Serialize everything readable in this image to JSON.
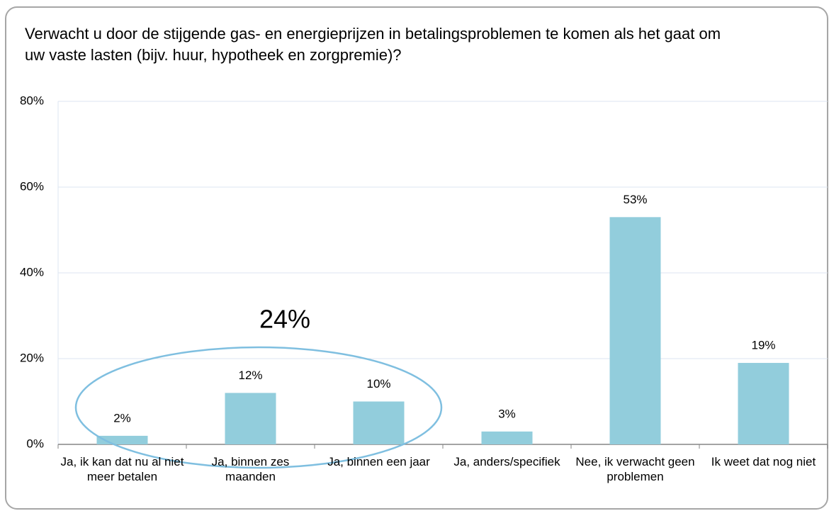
{
  "chart_data": {
    "type": "bar",
    "title": "Verwacht u door de stijgende gas- en energieprijzen in betalingsproblemen te komen als het gaat om uw vaste lasten (bijv. huur, hypotheek en zorgpremie)?",
    "categories": [
      "Ja, ik kan dat nu al niet meer betalen",
      "Ja, binnen zes maanden",
      "Ja, binnen een jaar",
      "Ja, anders/specifiek",
      "Nee, ik verwacht geen problemen",
      "Ik weet dat nog niet"
    ],
    "values": [
      2,
      12,
      10,
      3,
      53,
      19
    ],
    "value_labels": [
      "2%",
      "12%",
      "10%",
      "3%",
      "53%",
      "19%"
    ],
    "color": "#92cddc",
    "ylim": [
      0,
      80
    ],
    "yticks": [
      {
        "value": 0,
        "label": "0%"
      },
      {
        "value": 20,
        "label": "20%"
      },
      {
        "value": 40,
        "label": "40%"
      },
      {
        "value": 60,
        "label": "60%"
      },
      {
        "value": 80,
        "label": "80%"
      }
    ],
    "grid": true,
    "annotation": "24%"
  }
}
